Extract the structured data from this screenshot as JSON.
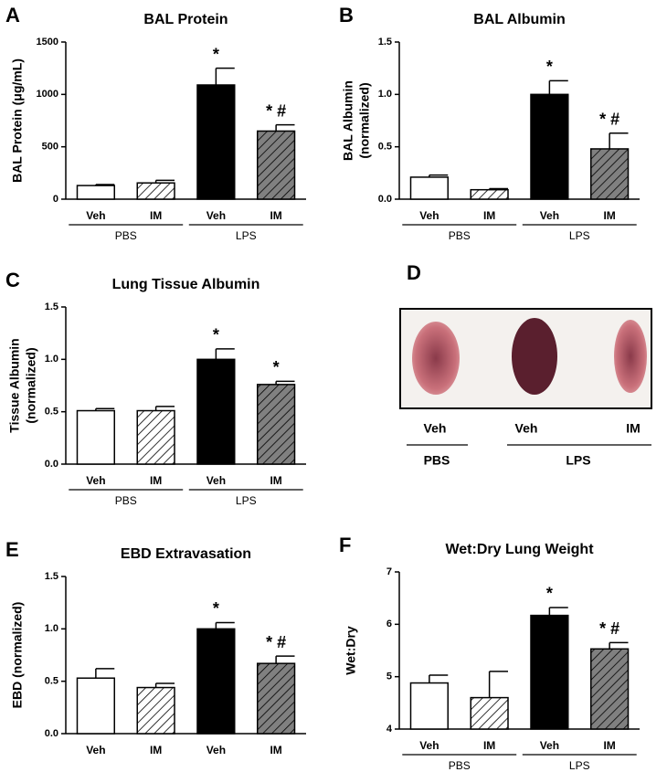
{
  "chart_data": [
    {
      "type": "bar",
      "panel": "A",
      "title": "BAL Protein",
      "y_label": [
        "BAL Protein (μg/mL)"
      ],
      "categories": [
        "Veh",
        "IM",
        "Veh",
        "IM"
      ],
      "groups": [
        "PBS",
        "LPS"
      ],
      "values": [
        130,
        155,
        1090,
        650
      ],
      "errors": [
        10,
        25,
        160,
        60
      ],
      "annotations": [
        null,
        null,
        "*",
        "* #"
      ],
      "colors": [
        "#ffffff",
        "#ffffff",
        "#000000",
        "#808080"
      ],
      "hatch": [
        false,
        true,
        false,
        true
      ],
      "ylim": [
        0,
        1500
      ],
      "yticks": [
        0,
        500,
        1000,
        1500
      ]
    },
    {
      "type": "bar",
      "panel": "B",
      "title": "BAL Albumin",
      "y_label": [
        "BAL Albumin",
        "(normalized)"
      ],
      "categories": [
        "Veh",
        "IM",
        "Veh",
        "IM"
      ],
      "groups": [
        "PBS",
        "LPS"
      ],
      "values": [
        0.21,
        0.09,
        1.0,
        0.48
      ],
      "errors": [
        0.02,
        0.01,
        0.13,
        0.15
      ],
      "annotations": [
        null,
        null,
        "*",
        "* #"
      ],
      "colors": [
        "#ffffff",
        "#ffffff",
        "#000000",
        "#808080"
      ],
      "hatch": [
        false,
        true,
        false,
        true
      ],
      "ylim": [
        0,
        1.5
      ],
      "yticks": [
        {
          "value": 0,
          "label": "0.0"
        },
        {
          "value": 0.5,
          "label": "0.5"
        },
        {
          "value": 1,
          "label": "1.0"
        },
        {
          "value": 1.5,
          "label": "1.5"
        }
      ]
    },
    {
      "type": "bar",
      "panel": "C",
      "title": "Lung Tissue Albumin",
      "y_label": [
        "Tissue Albumin",
        "(normalized)"
      ],
      "categories": [
        "Veh",
        "IM",
        "Veh",
        "IM"
      ],
      "groups": [
        "PBS",
        "LPS"
      ],
      "values": [
        0.51,
        0.51,
        1.0,
        0.76
      ],
      "errors": [
        0.02,
        0.04,
        0.1,
        0.03
      ],
      "annotations": [
        null,
        null,
        "*",
        "*"
      ],
      "colors": [
        "#ffffff",
        "#ffffff",
        "#000000",
        "#808080"
      ],
      "hatch": [
        false,
        true,
        false,
        true
      ],
      "ylim": [
        0,
        1.5
      ],
      "yticks": [
        {
          "value": 0,
          "label": "0.0"
        },
        {
          "value": 0.5,
          "label": "0.5"
        },
        {
          "value": 1,
          "label": "1.0"
        },
        {
          "value": 1.5,
          "label": "1.5"
        }
      ]
    },
    {
      "type": "bar",
      "panel": "E",
      "title": "EBD Extravasation",
      "y_label": [
        "EBD (normalized)"
      ],
      "categories": [
        "Veh",
        "IM",
        "Veh",
        "IM"
      ],
      "values": [
        0.53,
        0.44,
        1.0,
        0.67
      ],
      "errors": [
        0.09,
        0.04,
        0.06,
        0.07
      ],
      "annotations": [
        null,
        null,
        "*",
        "* #"
      ],
      "colors": [
        "#ffffff",
        "#ffffff",
        "#000000",
        "#808080"
      ],
      "hatch": [
        false,
        true,
        false,
        true
      ],
      "ylim": [
        0,
        1.5
      ],
      "yticks": [
        {
          "value": 0,
          "label": "0.0"
        },
        {
          "value": 0.5,
          "label": "0.5"
        },
        {
          "value": 1,
          "label": "1.0"
        },
        {
          "value": 1.5,
          "label": "1.5"
        }
      ]
    },
    {
      "type": "bar",
      "panel": "F",
      "title": "Wet:Dry Lung Weight",
      "y_label": [
        "Wet:Dry"
      ],
      "categories": [
        "Veh",
        "IM",
        "Veh",
        "IM"
      ],
      "groups": [
        "PBS",
        "LPS"
      ],
      "values": [
        4.88,
        4.6,
        6.17,
        5.53
      ],
      "errors": [
        0.15,
        0.5,
        0.15,
        0.12
      ],
      "annotations": [
        null,
        null,
        "*",
        "* #"
      ],
      "colors": [
        "#ffffff",
        "#ffffff",
        "#000000",
        "#808080"
      ],
      "hatch": [
        false,
        true,
        false,
        true
      ],
      "ylim": [
        4,
        7
      ],
      "yticks": [
        4,
        5,
        6,
        7
      ]
    }
  ],
  "panel_d": {
    "letter": "D",
    "categories": [
      "Veh",
      "Veh",
      "IM"
    ],
    "groups": [
      "PBS",
      "LPS"
    ]
  }
}
